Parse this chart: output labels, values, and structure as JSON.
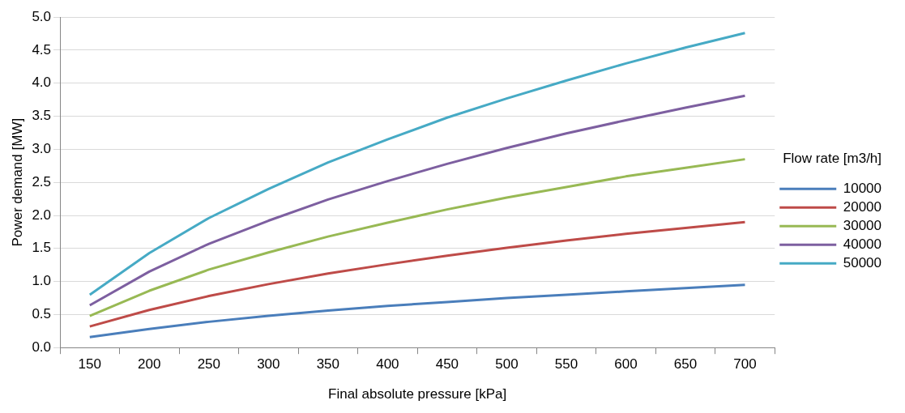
{
  "chart_data": {
    "type": "line",
    "xlabel": "Final absolute pressure [kPa]",
    "ylabel": "Power demand [MW]",
    "legend_title": "Flow rate [m3/h]",
    "categories": [
      "150",
      "200",
      "250",
      "300",
      "350",
      "400",
      "450",
      "500",
      "550",
      "600",
      "650",
      "700"
    ],
    "series": [
      {
        "name": "10000",
        "color": "#4a7ebb",
        "values": [
          0.16,
          0.28,
          0.39,
          0.48,
          0.56,
          0.63,
          0.69,
          0.75,
          0.8,
          0.85,
          0.9,
          0.95
        ]
      },
      {
        "name": "20000",
        "color": "#be4b48",
        "values": [
          0.32,
          0.57,
          0.78,
          0.96,
          1.12,
          1.26,
          1.39,
          1.51,
          1.62,
          1.72,
          1.81,
          1.9
        ]
      },
      {
        "name": "30000",
        "color": "#98b954",
        "values": [
          0.48,
          0.86,
          1.18,
          1.44,
          1.68,
          1.89,
          2.09,
          2.27,
          2.43,
          2.59,
          2.72,
          2.85
        ]
      },
      {
        "name": "40000",
        "color": "#7d5fa0",
        "values": [
          0.64,
          1.15,
          1.57,
          1.92,
          2.24,
          2.52,
          2.78,
          3.02,
          3.24,
          3.44,
          3.63,
          3.81
        ]
      },
      {
        "name": "50000",
        "color": "#46aac5",
        "values": [
          0.8,
          1.43,
          1.96,
          2.4,
          2.8,
          3.15,
          3.48,
          3.77,
          4.04,
          4.3,
          4.54,
          4.76
        ]
      }
    ],
    "ylim": [
      0,
      5
    ],
    "yticks": [
      {
        "value": 0,
        "label": "0.0"
      },
      {
        "value": 0.5,
        "label": "0.5"
      },
      {
        "value": 1,
        "label": "1.0"
      },
      {
        "value": 1.5,
        "label": "1.5"
      },
      {
        "value": 2,
        "label": "2.0"
      },
      {
        "value": 2.5,
        "label": "2.5"
      },
      {
        "value": 3,
        "label": "3.0"
      },
      {
        "value": 3.5,
        "label": "3.5"
      },
      {
        "value": 4,
        "label": "4.0"
      },
      {
        "value": 4.5,
        "label": "4.5"
      },
      {
        "value": 5,
        "label": "5.0"
      }
    ],
    "grid": "y",
    "legend": "right",
    "marker": "none",
    "line_style": "solid"
  }
}
